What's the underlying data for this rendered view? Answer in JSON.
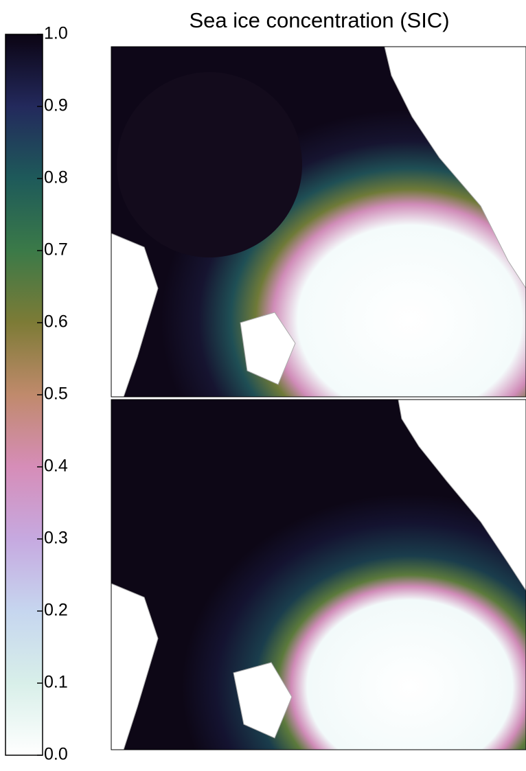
{
  "chart_data": {
    "type": "heatmap",
    "title": "Sea ice concentration (SIC)",
    "colorbar": {
      "lim": [
        0,
        1
      ],
      "ticks": [
        {
          "value": 0,
          "label": "0.0"
        },
        0.1,
        0.2,
        0.3,
        0.4,
        0.5,
        0.6,
        0.7,
        0.8,
        0.9,
        {
          "value": 1,
          "label": "1.0"
        }
      ],
      "colormap": [
        "#ffffff",
        "#d8efe9",
        "#c6d6ef",
        "#c6a9e0",
        "#d68db8",
        "#c08a6c",
        "#7d7b36",
        "#3b7a48",
        "#1e5a5a",
        "#23295c",
        "#0b0413"
      ]
    }
  }
}
